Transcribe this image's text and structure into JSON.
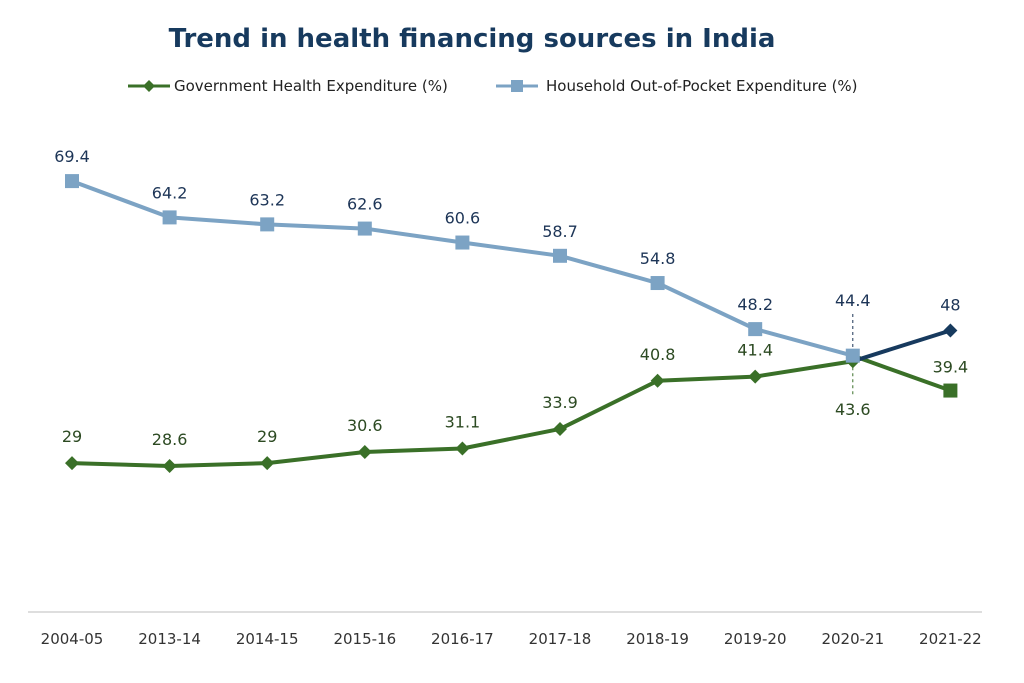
{
  "chart_data": {
    "type": "line",
    "title": "Trend in health financing sources in India",
    "xlabel": "",
    "ylabel": "",
    "ylim": [
      20,
      75
    ],
    "grid": false,
    "legend_position": "top",
    "categories": [
      "2004-05",
      "2013-14",
      "2014-15",
      "2015-16",
      "2016-17",
      "2017-18",
      "2018-19",
      "2019-20",
      "2020-21",
      "2021-22"
    ],
    "series": [
      {
        "name": "Government Health Expenditure (%)",
        "marker": "diamond",
        "color": "#3a7028",
        "values": [
          29,
          28.6,
          29,
          30.6,
          31.1,
          33.9,
          40.8,
          41.4,
          43.6,
          48
        ],
        "labels": [
          "29",
          "28.6",
          "29",
          "30.6",
          "31.1",
          "33.9",
          "40.8",
          "41.4",
          "43.6",
          "48"
        ],
        "last_point_color": "#173a5e"
      },
      {
        "name": "Household Out-of-Pocket Expenditure (%)",
        "marker": "square",
        "color": "#7ca3c4",
        "values": [
          69.4,
          64.2,
          63.2,
          62.6,
          60.6,
          58.7,
          54.8,
          48.2,
          44.4,
          39.4
        ],
        "labels": [
          "69.4",
          "64.2",
          "63.2",
          "62.6",
          "60.6",
          "58.7",
          "54.8",
          "48.2",
          "44.4",
          "39.4"
        ],
        "last_point_color": "#3a7028"
      }
    ],
    "annotations": [
      "Dashed vertical marker at 2020-21 crossover"
    ]
  }
}
